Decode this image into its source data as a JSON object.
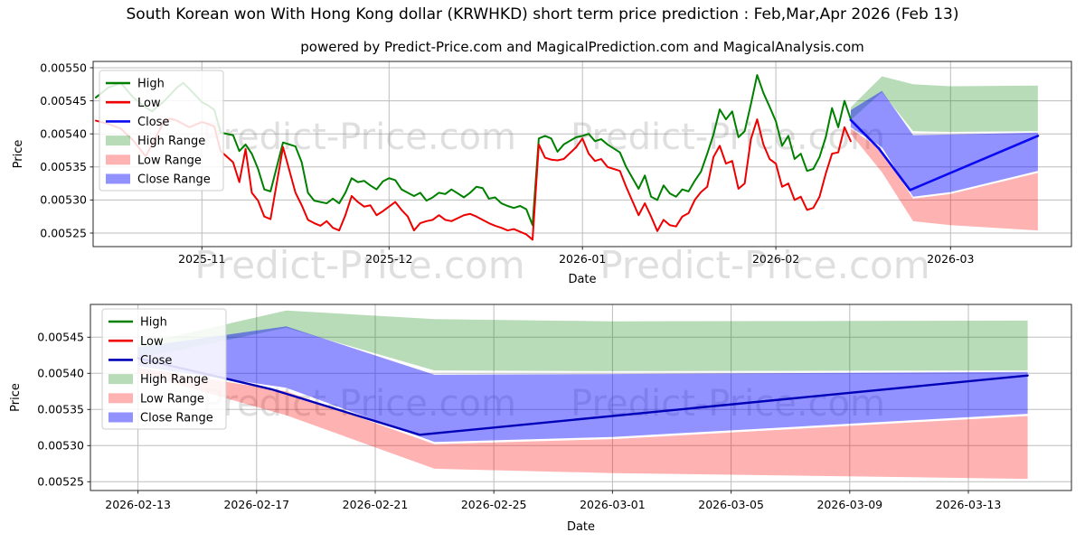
{
  "title": "South Korean won With Hong Kong dollar (KRWHKD) short term price prediction : Feb,Mar,Apr 2026 (Feb 13)",
  "subtitle": "powered by Predict-Price.com and MagicalPrediction.com and MagicalAnalysis.com",
  "watermark": "Predict-Price.com",
  "colors": {
    "high": "#008000",
    "low": "#ee0000",
    "close": "#0a0af0",
    "close_dark": "#0000b8",
    "high_range": "rgba(0,128,0,0.28)",
    "low_range": "rgba(255,0,0,0.30)",
    "close_range": "rgba(10,10,255,0.45)",
    "watermark": "rgba(110,110,110,0.22)",
    "grid": "#bdbdbd",
    "frame": "#262626",
    "text": "#000000"
  },
  "chart_data": [
    {
      "type": "line",
      "panel": "history",
      "xlabel": "Date",
      "ylabel": "Price",
      "grid": true,
      "legend_position": "upper left",
      "x_unit": "days since 2025-10-15",
      "ylim": [
        0.005225,
        0.00551
      ],
      "xticks": [
        {
          "t": 17,
          "label": "2025-11"
        },
        {
          "t": 47,
          "label": "2025-12"
        },
        {
          "t": 78,
          "label": "2026-01"
        },
        {
          "t": 109,
          "label": "2026-02"
        },
        {
          "t": 137,
          "label": "2026-03"
        }
      ],
      "yticks": [
        {
          "v": 0.0055,
          "label": "0.00550"
        },
        {
          "v": 0.00545,
          "label": "0.00545"
        },
        {
          "v": 0.0054,
          "label": "0.00540"
        },
        {
          "v": 0.00535,
          "label": "0.00535"
        },
        {
          "v": 0.0053,
          "label": "0.00530"
        },
        {
          "v": 0.00525,
          "label": "0.00525"
        }
      ],
      "legend": [
        {
          "label": "High",
          "swatch": "line",
          "color": "high"
        },
        {
          "label": "Low",
          "swatch": "line",
          "color": "low"
        },
        {
          "label": "Close",
          "swatch": "line",
          "color": "close"
        },
        {
          "label": "High Range",
          "swatch": "patch",
          "color": "high_range"
        },
        {
          "label": "Low Range",
          "swatch": "patch",
          "color": "low_range"
        },
        {
          "label": "Close Range",
          "swatch": "patch",
          "color": "close_range"
        }
      ],
      "x_days": [
        0,
        2,
        4,
        6,
        8,
        9,
        11,
        12,
        13,
        14,
        15,
        17,
        18,
        19,
        20,
        22,
        23,
        24,
        25,
        26,
        27,
        28,
        30,
        32,
        33,
        34,
        35,
        36,
        37,
        38,
        39,
        40,
        41,
        42,
        43,
        44,
        45,
        46,
        47,
        48,
        49,
        50,
        51,
        52,
        53,
        54,
        55,
        56,
        57,
        59,
        60,
        61,
        62,
        63,
        64,
        65,
        66,
        67,
        68,
        69,
        70,
        71,
        72,
        73,
        74,
        75,
        77,
        78,
        79,
        80,
        81,
        82,
        84,
        85,
        87,
        88,
        89,
        90,
        91,
        92,
        93,
        94,
        95,
        96,
        97,
        98,
        99,
        100,
        101,
        102,
        103,
        104,
        105,
        106,
        107,
        108,
        109,
        110,
        111,
        112,
        113,
        114,
        115,
        116,
        117,
        118,
        119,
        120,
        121
      ],
      "series": [
        {
          "name": "High",
          "color": "high",
          "width": 2,
          "y": [
            0.005455,
            0.00547,
            0.005477,
            0.005455,
            0.00544,
            0.005434,
            0.00545,
            0.00546,
            0.00547,
            0.005477,
            0.005468,
            0.005448,
            0.005443,
            0.005436,
            0.005402,
            0.005398,
            0.005374,
            0.005384,
            0.00537,
            0.005347,
            0.005316,
            0.005313,
            0.005387,
            0.005381,
            0.005357,
            0.005311,
            0.005299,
            0.005297,
            0.005295,
            0.005302,
            0.005295,
            0.005311,
            0.005333,
            0.005327,
            0.005329,
            0.005322,
            0.005316,
            0.005328,
            0.005333,
            0.00533,
            0.005316,
            0.005311,
            0.005306,
            0.005311,
            0.005299,
            0.005304,
            0.005311,
            0.005309,
            0.005316,
            0.005304,
            0.005311,
            0.00532,
            0.005318,
            0.005302,
            0.005304,
            0.005295,
            0.005291,
            0.005288,
            0.005291,
            0.005286,
            0.005262,
            0.005393,
            0.005397,
            0.005393,
            0.005373,
            0.005384,
            0.005395,
            0.005397,
            0.0054,
            0.005389,
            0.005392,
            0.005384,
            0.005372,
            0.00535,
            0.005317,
            0.005337,
            0.005305,
            0.0053,
            0.005322,
            0.00531,
            0.005305,
            0.005316,
            0.005313,
            0.005329,
            0.005343,
            0.00537,
            0.005399,
            0.005437,
            0.005422,
            0.005434,
            0.005395,
            0.005404,
            0.005445,
            0.005489,
            0.005462,
            0.005441,
            0.005419,
            0.005382,
            0.005397,
            0.005362,
            0.00537,
            0.005344,
            0.005347,
            0.005365,
            0.005395,
            0.005439,
            0.00541,
            0.00545,
            0.005422
          ]
        },
        {
          "name": "Low",
          "color": "low",
          "width": 2,
          "y": [
            0.00542,
            0.005415,
            0.005408,
            0.00539,
            0.005366,
            0.005384,
            0.00542,
            0.005423,
            0.00542,
            0.005415,
            0.00541,
            0.005418,
            0.005415,
            0.005411,
            0.005374,
            0.005357,
            0.005327,
            0.005377,
            0.005311,
            0.005299,
            0.005275,
            0.005271,
            0.00538,
            0.005311,
            0.005292,
            0.00527,
            0.005265,
            0.005261,
            0.005268,
            0.005258,
            0.005254,
            0.005277,
            0.005306,
            0.005297,
            0.00529,
            0.005292,
            0.005277,
            0.005283,
            0.00529,
            0.005297,
            0.005285,
            0.005275,
            0.005254,
            0.005265,
            0.005268,
            0.00527,
            0.005277,
            0.00527,
            0.005268,
            0.005277,
            0.005279,
            0.005275,
            0.00527,
            0.005265,
            0.005261,
            0.005258,
            0.005254,
            0.005256,
            0.005252,
            0.005248,
            0.00524,
            0.005384,
            0.005364,
            0.005361,
            0.00536,
            0.005362,
            0.00538,
            0.005393,
            0.00537,
            0.005359,
            0.005362,
            0.00535,
            0.005344,
            0.00532,
            0.005277,
            0.005295,
            0.005275,
            0.005253,
            0.00527,
            0.005262,
            0.00526,
            0.005275,
            0.00528,
            0.0053,
            0.005312,
            0.00532,
            0.005365,
            0.005382,
            0.005355,
            0.005359,
            0.005317,
            0.005325,
            0.005392,
            0.005422,
            0.005384,
            0.005362,
            0.005355,
            0.00532,
            0.005325,
            0.0053,
            0.005305,
            0.005285,
            0.005288,
            0.005305,
            0.00534,
            0.00537,
            0.005372,
            0.00541,
            0.005389
          ]
        },
        {
          "name": "Close",
          "color": "close",
          "width": 2.6,
          "x": [
            121,
            125.5,
            130.5,
            151
          ],
          "y": [
            0.005421,
            0.005378,
            0.005315,
            0.005397
          ]
        }
      ],
      "bands": [
        {
          "name": "High Range",
          "color": "high_range",
          "x": [
            121,
            126,
            131,
            137,
            151
          ],
          "top": [
            0.00544,
            0.005487,
            0.005475,
            0.005472,
            0.005473
          ],
          "bottom": [
            0.005421,
            0.005463,
            0.005404,
            0.005403,
            0.005404
          ]
        },
        {
          "name": "Low Range",
          "color": "low_range",
          "x": [
            121,
            126,
            131,
            137,
            151
          ],
          "top": [
            0.005408,
            0.005375,
            0.005302,
            0.005309,
            0.005341
          ],
          "bottom": [
            0.0054,
            0.005342,
            0.005268,
            0.005262,
            0.005254
          ]
        },
        {
          "name": "Close Range",
          "color": "close_range",
          "x": [
            121,
            126,
            131,
            137,
            151
          ],
          "top": [
            0.005436,
            0.005465,
            0.005398,
            0.005399,
            0.005402
          ],
          "bottom": [
            0.00541,
            0.00538,
            0.005305,
            0.005312,
            0.005344
          ]
        }
      ]
    },
    {
      "type": "line",
      "panel": "forecast",
      "xlabel": "Date",
      "ylabel": "Price",
      "grid": true,
      "legend_position": "upper left",
      "x_unit": "days since 2026-02-13",
      "ylim": [
        0.005237,
        0.005496
      ],
      "xticks": [
        {
          "t": 0,
          "label": "2026-02-13"
        },
        {
          "t": 4,
          "label": "2026-02-17"
        },
        {
          "t": 8,
          "label": "2026-02-21"
        },
        {
          "t": 12,
          "label": "2026-02-25"
        },
        {
          "t": 16,
          "label": "2026-03-01"
        },
        {
          "t": 20,
          "label": "2026-03-05"
        },
        {
          "t": 24,
          "label": "2026-03-09"
        },
        {
          "t": 28,
          "label": "2026-03-13"
        }
      ],
      "yticks": [
        {
          "v": 0.00545,
          "label": "0.00545"
        },
        {
          "v": 0.0054,
          "label": "0.00540"
        },
        {
          "v": 0.00535,
          "label": "0.00535"
        },
        {
          "v": 0.0053,
          "label": "0.00530"
        },
        {
          "v": 0.00525,
          "label": "0.00525"
        }
      ],
      "legend": [
        {
          "label": "High",
          "swatch": "line",
          "color": "high"
        },
        {
          "label": "Low",
          "swatch": "line",
          "color": "low"
        },
        {
          "label": "Close",
          "swatch": "line",
          "color": "close_dark"
        },
        {
          "label": "High Range",
          "swatch": "patch",
          "color": "high_range"
        },
        {
          "label": "Low Range",
          "swatch": "patch",
          "color": "low_range"
        },
        {
          "label": "Close Range",
          "swatch": "patch",
          "color": "close_range"
        }
      ],
      "series": [
        {
          "name": "Close",
          "color": "close_dark",
          "width": 2.4,
          "x": [
            0,
            4.5,
            9.5,
            30
          ],
          "y": [
            0.005421,
            0.005378,
            0.005315,
            0.005397
          ]
        }
      ],
      "bands": [
        {
          "name": "High Range",
          "color": "high_range",
          "x": [
            0,
            5,
            10,
            16,
            30
          ],
          "top": [
            0.00544,
            0.005487,
            0.005475,
            0.005472,
            0.005473
          ],
          "bottom": [
            0.005421,
            0.005463,
            0.005404,
            0.005403,
            0.005404
          ]
        },
        {
          "name": "Low Range",
          "color": "low_range",
          "x": [
            0,
            5,
            10,
            16,
            30
          ],
          "top": [
            0.005408,
            0.005375,
            0.005302,
            0.005309,
            0.005341
          ],
          "bottom": [
            0.0054,
            0.005342,
            0.005268,
            0.005262,
            0.005254
          ]
        },
        {
          "name": "Close Range",
          "color": "close_range",
          "x": [
            0,
            5,
            10,
            16,
            30
          ],
          "top": [
            0.005436,
            0.005465,
            0.005398,
            0.005399,
            0.005402
          ],
          "bottom": [
            0.00541,
            0.00538,
            0.005305,
            0.005312,
            0.005344
          ]
        }
      ]
    }
  ]
}
